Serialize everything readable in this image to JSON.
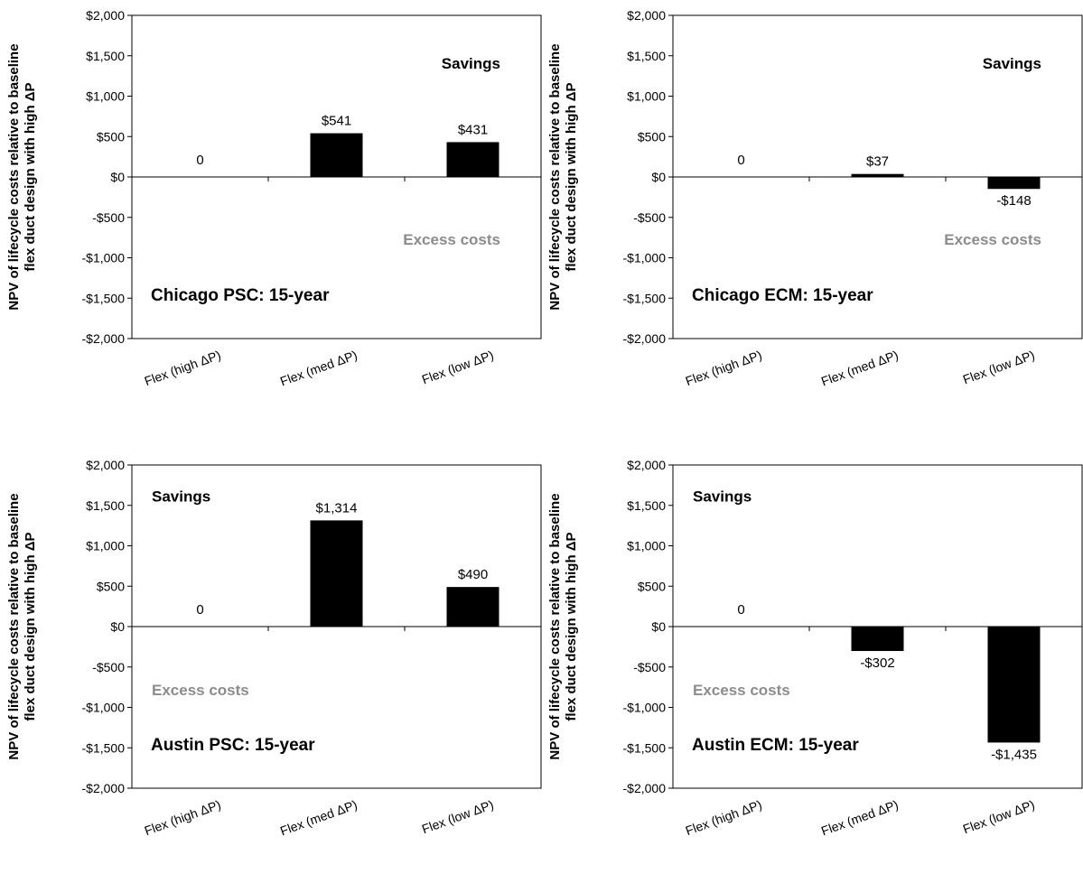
{
  "y_label_line1": "NPV of lifecycle costs relative to baseline",
  "y_label_line2": "flex duct design with high ΔP",
  "y_ticks": [
    "$2,000",
    "$1,500",
    "$1,000",
    "$500",
    "$0",
    "-$500",
    "-$1,000",
    "-$1,500",
    "-$2,000"
  ],
  "chart_data": [
    {
      "type": "bar",
      "title": "Chicago PSC: 15-year",
      "categories": [
        "Flex (high ΔP)",
        "Flex (med ΔP)",
        "Flex (low ΔP)"
      ],
      "values": [
        0,
        541,
        431
      ],
      "data_labels": [
        "0",
        "$541",
        "$431"
      ],
      "ylim": [
        -2000,
        2000
      ],
      "grid": false,
      "annotations": {
        "savings": "Savings",
        "excess": "Excess costs"
      },
      "annotation_side": "right",
      "colors": {
        "bar": "#000000",
        "excess": "#8c8c8c"
      }
    },
    {
      "type": "bar",
      "title": "Chicago ECM: 15-year",
      "categories": [
        "Flex (high ΔP)",
        "Flex (med ΔP)",
        "Flex (low ΔP)"
      ],
      "values": [
        0,
        37,
        -148
      ],
      "data_labels": [
        "0",
        "$37",
        "-$148"
      ],
      "ylim": [
        -2000,
        2000
      ],
      "grid": false,
      "annotations": {
        "savings": "Savings",
        "excess": "Excess costs"
      },
      "annotation_side": "right",
      "colors": {
        "bar": "#000000",
        "excess": "#8c8c8c"
      }
    },
    {
      "type": "bar",
      "title": "Austin PSC: 15-year",
      "categories": [
        "Flex (high ΔP)",
        "Flex (med ΔP)",
        "Flex (low ΔP)"
      ],
      "values": [
        0,
        1314,
        490
      ],
      "data_labels": [
        "0",
        "$1,314",
        "$490"
      ],
      "ylim": [
        -2000,
        2000
      ],
      "grid": false,
      "annotations": {
        "savings": "Savings",
        "excess": "Excess costs"
      },
      "annotation_side": "left",
      "colors": {
        "bar": "#000000",
        "excess": "#8c8c8c"
      }
    },
    {
      "type": "bar",
      "title": "Austin ECM: 15-year",
      "categories": [
        "Flex (high ΔP)",
        "Flex (med ΔP)",
        "Flex (low ΔP)"
      ],
      "values": [
        0,
        -302,
        -1435
      ],
      "data_labels": [
        "0",
        "-$302",
        "-$1,435"
      ],
      "ylim": [
        -2000,
        2000
      ],
      "grid": false,
      "annotations": {
        "savings": "Savings",
        "excess": "Excess costs"
      },
      "annotation_side": "left",
      "colors": {
        "bar": "#000000",
        "excess": "#8c8c8c"
      }
    }
  ]
}
